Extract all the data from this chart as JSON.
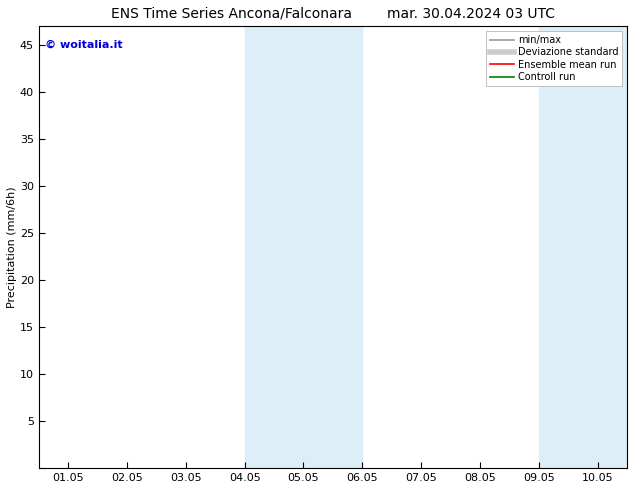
{
  "title_left": "ENS Time Series Ancona/Falconara",
  "title_right": "mar. 30.04.2024 03 UTC",
  "ylabel": "Precipitation (mm/6h)",
  "watermark": "© woitalia.it",
  "xtick_labels": [
    "01.05",
    "02.05",
    "03.05",
    "04.05",
    "05.05",
    "06.05",
    "07.05",
    "08.05",
    "09.05",
    "10.05"
  ],
  "ytick_vals": [
    0,
    5,
    10,
    15,
    20,
    25,
    30,
    35,
    40,
    45
  ],
  "ylim": [
    0,
    47
  ],
  "xlim": [
    -0.5,
    9.5
  ],
  "shade_regions": [
    {
      "xstart": 3.0,
      "xend": 5.0,
      "color": "#ddeef8"
    },
    {
      "xstart": 8.0,
      "xend": 9.5,
      "color": "#ddeef8"
    }
  ],
  "legend_entries": [
    {
      "label": "min/max",
      "color": "#999999",
      "lw": 1.2,
      "ls": "-"
    },
    {
      "label": "Deviazione standard",
      "color": "#cccccc",
      "lw": 4,
      "ls": "-"
    },
    {
      "label": "Ensemble mean run",
      "color": "red",
      "lw": 1.2,
      "ls": "-"
    },
    {
      "label": "Controll run",
      "color": "green",
      "lw": 1.2,
      "ls": "-"
    }
  ],
  "bg_color": "#ffffff",
  "plot_bg_color": "#ffffff",
  "border_color": "#000000",
  "title_fontsize": 10,
  "axis_fontsize": 8,
  "tick_fontsize": 8,
  "watermark_color": "#0000dd",
  "watermark_fontsize": 8,
  "legend_fontsize": 7
}
